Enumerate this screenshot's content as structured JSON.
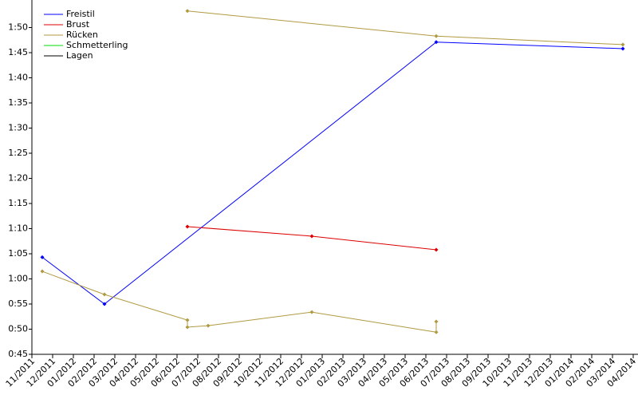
{
  "chart_data": {
    "type": "line",
    "xticks": [
      "11/2011",
      "12/2011",
      "01/2012",
      "02/2012",
      "03/2012",
      "04/2012",
      "05/2012",
      "06/2012",
      "07/2012",
      "08/2012",
      "09/2012",
      "10/2012",
      "11/2012",
      "12/2012",
      "01/2013",
      "02/2013",
      "03/2013",
      "04/2013",
      "05/2013",
      "06/2013",
      "07/2013",
      "08/2013",
      "09/2013",
      "10/2013",
      "11/2013",
      "12/2013",
      "01/2014",
      "02/2014",
      "03/2014",
      "04/2014"
    ],
    "ylim": [
      45,
      115
    ],
    "yticks": [
      {
        "value": 45,
        "label": "0:45"
      },
      {
        "value": 50,
        "label": "0:50"
      },
      {
        "value": 55,
        "label": "0:55"
      },
      {
        "value": 60,
        "label": "1:00"
      },
      {
        "value": 65,
        "label": "1:05"
      },
      {
        "value": 70,
        "label": "1:10"
      },
      {
        "value": 75,
        "label": "1:15"
      },
      {
        "value": 80,
        "label": "1:20"
      },
      {
        "value": 85,
        "label": "1:25"
      },
      {
        "value": 90,
        "label": "1:30"
      },
      {
        "value": 95,
        "label": "1:35"
      },
      {
        "value": 100,
        "label": "1:40"
      },
      {
        "value": 105,
        "label": "1:45"
      },
      {
        "value": 110,
        "label": "1:50"
      }
    ],
    "legend": "top-left",
    "series": [
      {
        "name": "Freistil",
        "color": "#0000ff",
        "x": [
          "11/2011",
          "02/2012",
          "06/2013",
          "03/2014"
        ],
        "values": [
          64.3,
          55,
          107.1,
          105.8
        ]
      },
      {
        "name": "Brust",
        "color": "#dd0000",
        "x": [
          "06/2012",
          "12/2012",
          "06/2013"
        ],
        "values": [
          70.4,
          68.5,
          65.8
        ]
      },
      {
        "name": "Rücken",
        "color": "#b09a40",
        "x": [
          "11/2011",
          "02/2012",
          "06/2012",
          "06/2012",
          "07/2012",
          "12/2012",
          "06/2013",
          "06/2013",
          null,
          "06/2012",
          "06/2013",
          "03/2014"
        ],
        "values": [
          61.5,
          56.9,
          51.8,
          50.4,
          50.7,
          53.4,
          49.4,
          51.5,
          null,
          113.3,
          108.3,
          106.6
        ]
      },
      {
        "name": "Schmetterling",
        "color": "#00dd00",
        "x": [],
        "values": []
      },
      {
        "name": "Lagen",
        "color": "#000000",
        "x": [],
        "values": []
      }
    ]
  }
}
